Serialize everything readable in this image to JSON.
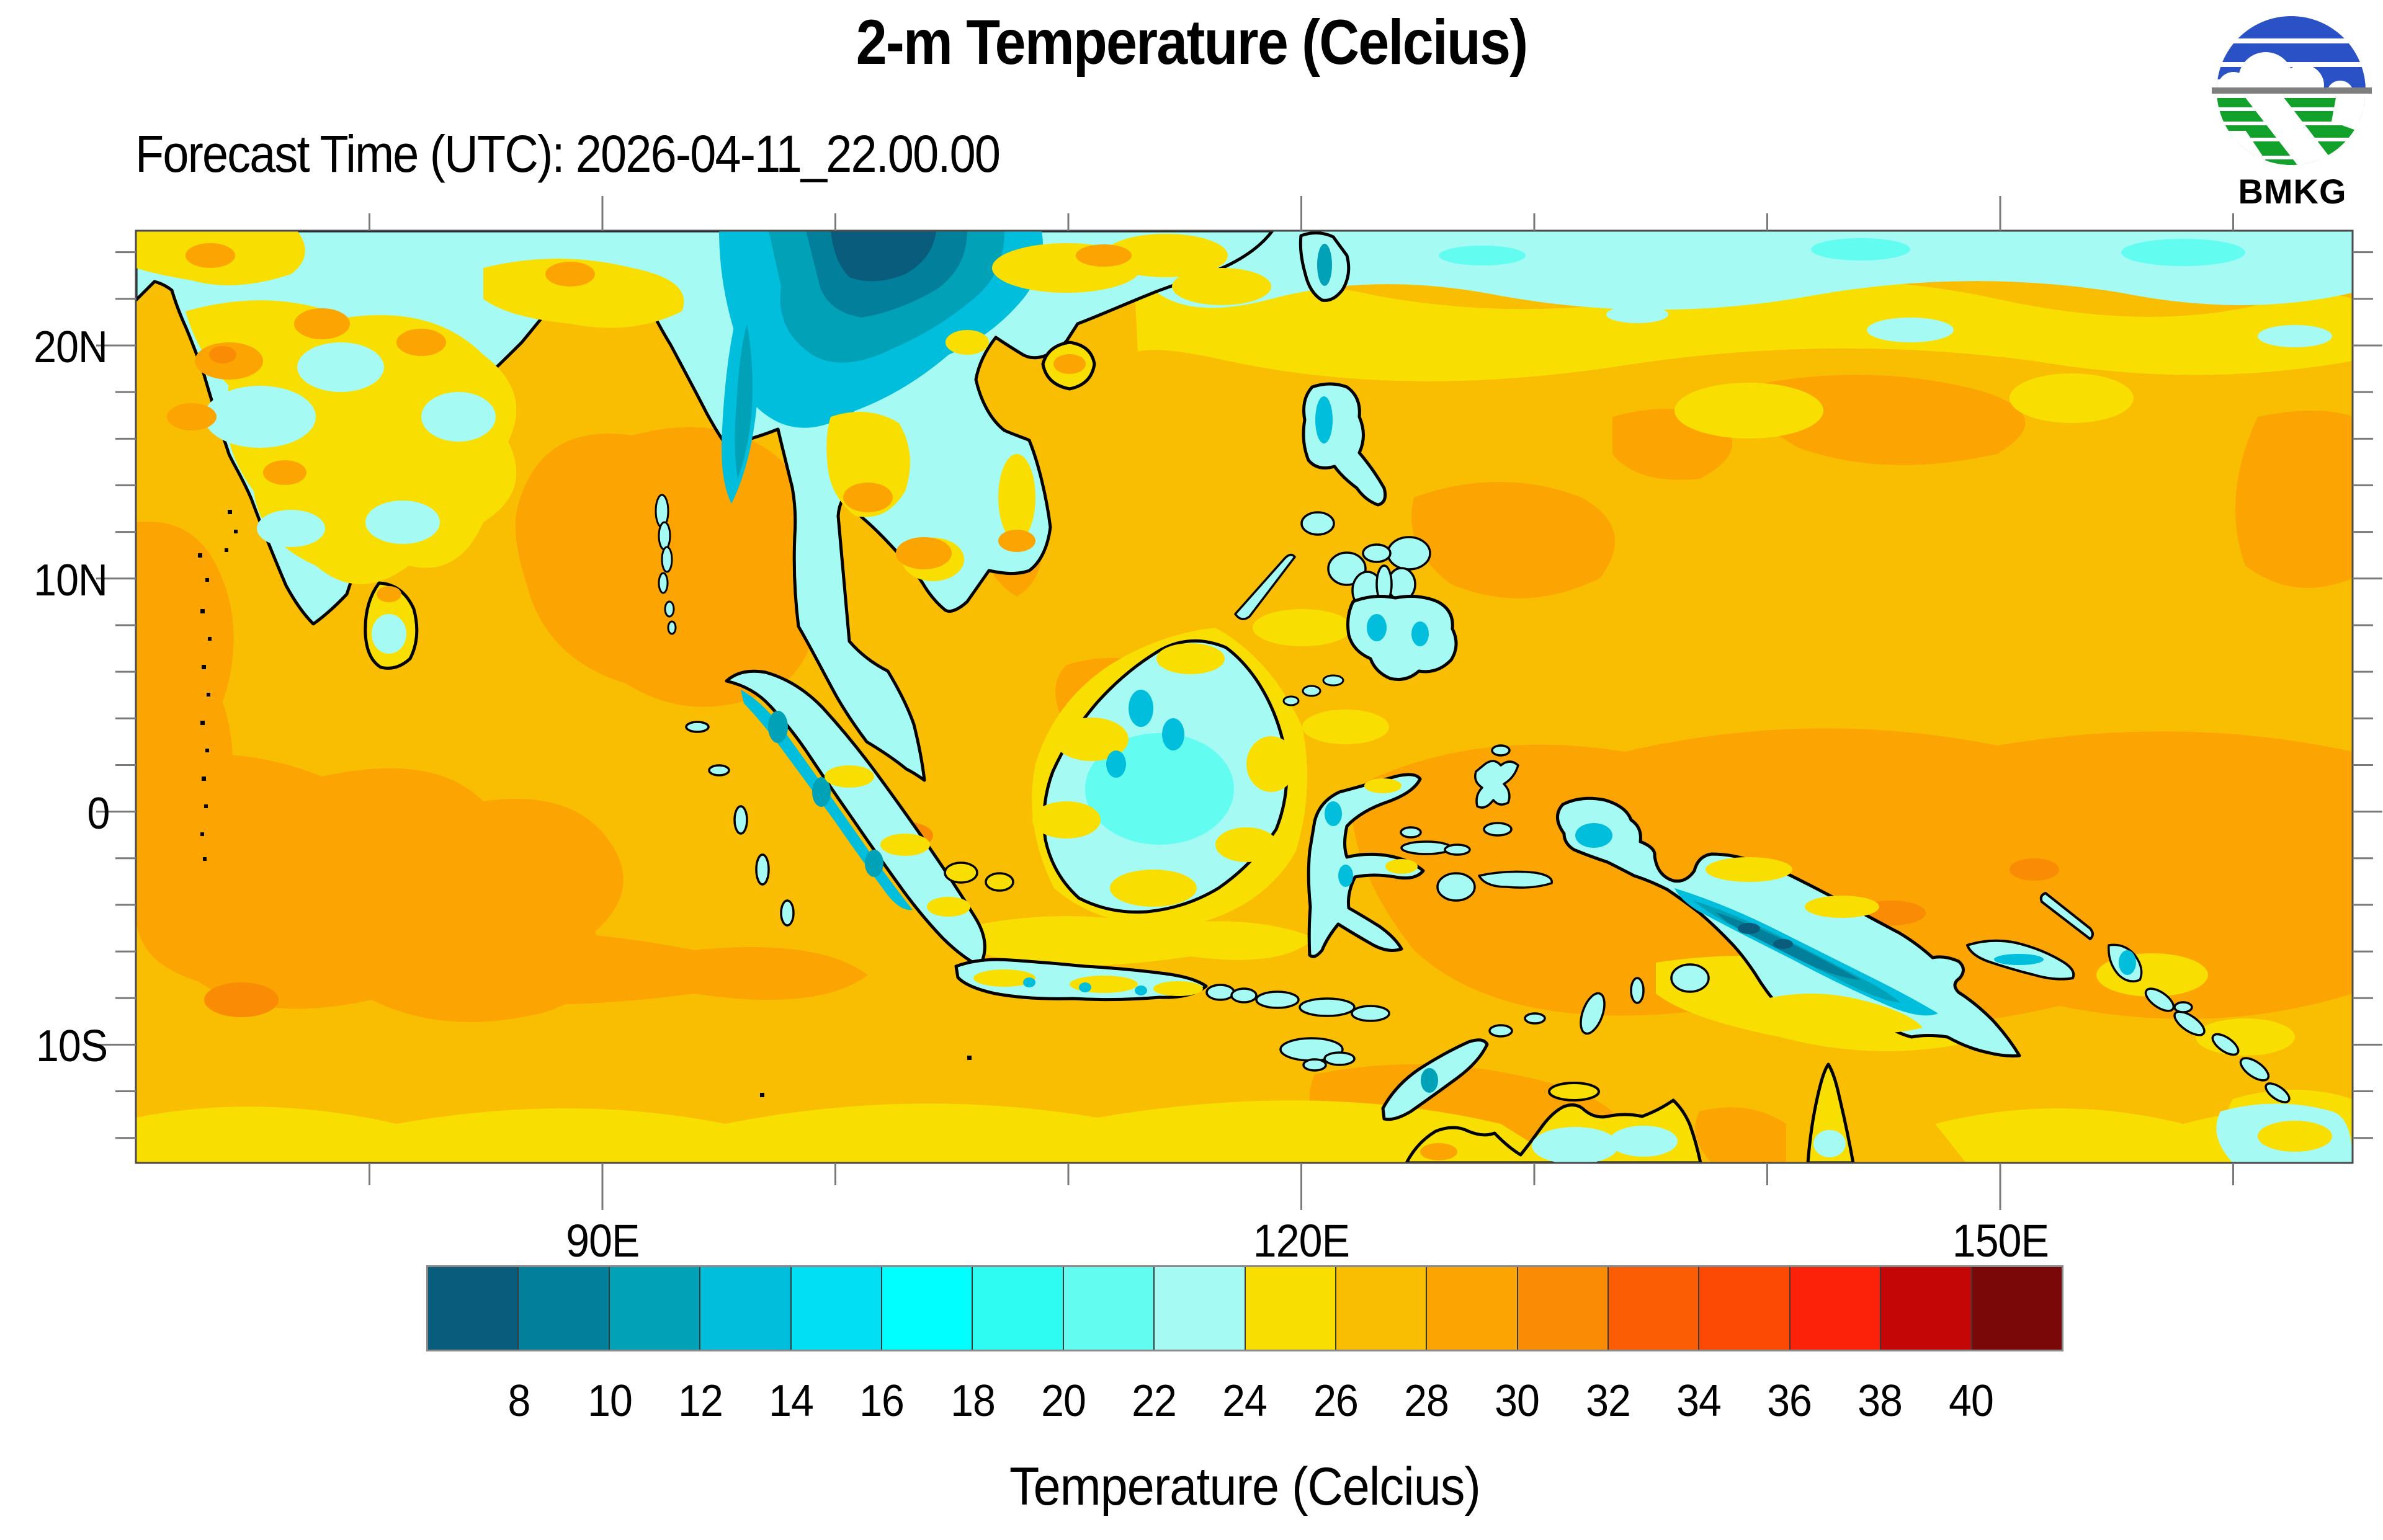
{
  "title": "2-m Temperature (Celcius)",
  "subtitle": "Forecast Time (UTC): 2026-04-11_22.00.00",
  "logo": {
    "text": "BMKG",
    "blue": "#2a52c6",
    "green": "#12a12b",
    "gray": "#7f7f7f"
  },
  "map": {
    "lat_labels": [
      {
        "text": "20N",
        "lat": 20
      },
      {
        "text": "10N",
        "lat": 10
      },
      {
        "text": "0",
        "lat": 0
      },
      {
        "text": "10S",
        "lat": -10
      }
    ],
    "lon_labels": [
      {
        "text": "90E",
        "lon": 90
      },
      {
        "text": "120E",
        "lon": 120
      },
      {
        "text": "150E",
        "lon": 150
      }
    ]
  },
  "colorbar": {
    "title": "Temperature (Celcius)",
    "units": "Celcius",
    "tick_labels": [
      "8",
      "10",
      "12",
      "14",
      "16",
      "18",
      "20",
      "22",
      "24",
      "26",
      "28",
      "30",
      "32",
      "34",
      "36",
      "38",
      "40"
    ],
    "min_label": 8,
    "max_label": 40,
    "step": 2,
    "colors": [
      "#0a5c7d",
      "#02809b",
      "#01a2b8",
      "#01bedd",
      "#00dff4",
      "#00ffff",
      "#2efcf3",
      "#63fcf1",
      "#a5fbf3",
      "#f9df01",
      "#f9bd01",
      "#fba402",
      "#f98b05",
      "#fb5d04",
      "#fc4903",
      "#fb2209",
      "#c40606",
      "#7b0808"
    ]
  }
}
